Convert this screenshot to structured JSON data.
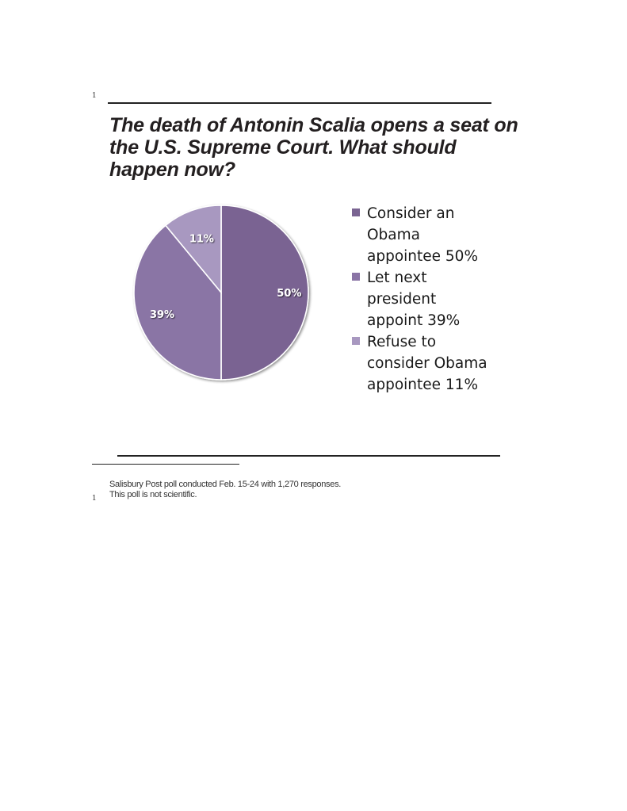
{
  "page": {
    "marker_top": "1",
    "marker_bottom": "1",
    "footnote": "Salisbury Post poll conducted Feb. 15-24 with 1,270 responses. This poll is not scientific."
  },
  "chart_data": {
    "type": "pie",
    "title": "The death of Antonin Scalia opens a seat on the U.S. Supreme Court. What should happen now?",
    "legend_placement": "right",
    "slices": [
      {
        "legend_label": "Consider an Obama appointee 50%",
        "data_label": "50%",
        "value": 50,
        "color": "#7a6492"
      },
      {
        "legend_label": "Let next president appoint 39%",
        "data_label": "39%",
        "value": 39,
        "color": "#8a74a5"
      },
      {
        "legend_label": "Refuse to consider Obama appointee 11%",
        "data_label": "11%",
        "value": 11,
        "color": "#a898c0"
      }
    ]
  }
}
